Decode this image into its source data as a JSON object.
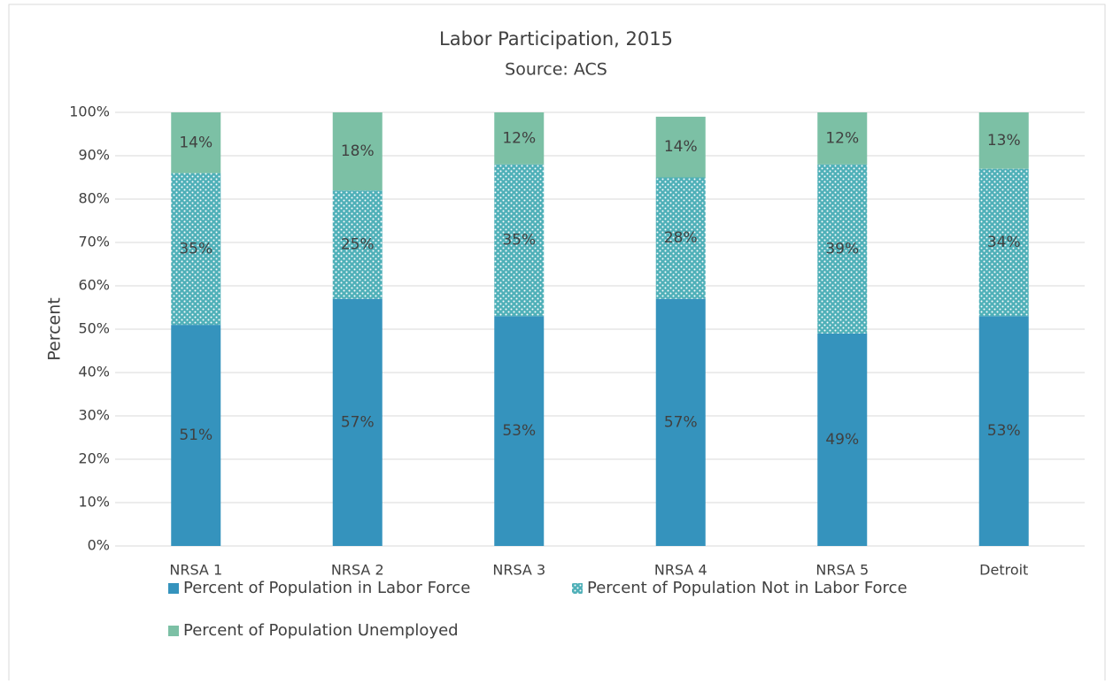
{
  "chart_data": {
    "type": "stacked_bar",
    "title": "Labor Participation, 2015",
    "subtitle": "Source: ACS",
    "y_label": "Percent",
    "categories": [
      "NRSA 1",
      "NRSA 2",
      "NRSA 3",
      "NRSA 4",
      "NRSA 5",
      "Detroit"
    ],
    "series": [
      {
        "name": "Percent of Population in Labor Force",
        "color": "#3593bd",
        "pattern": "solid",
        "values": [
          51,
          57,
          53,
          57,
          49,
          53
        ],
        "value_labels": [
          "51%",
          "57%",
          "53%",
          "57%",
          "49%",
          "53%"
        ]
      },
      {
        "name": "Percent of Population Not in Labor Force",
        "color": "#4fb0b8",
        "pattern": "dots",
        "values": [
          35,
          25,
          35,
          28,
          39,
          34
        ],
        "value_labels": [
          "35%",
          "25%",
          "35%",
          "28%",
          "39%",
          "34%"
        ]
      },
      {
        "name": "Percent of Population Unemployed",
        "color": "#7cc0a5",
        "pattern": "solid",
        "values": [
          14,
          18,
          12,
          14,
          12,
          13
        ],
        "value_labels": [
          "14%",
          "18%",
          "12%",
          "14%",
          "12%",
          "13%"
        ]
      }
    ],
    "ylim": [
      0,
      100
    ],
    "yticks": [
      {
        "value": 0,
        "label": "0%"
      },
      {
        "value": 10,
        "label": "10%"
      },
      {
        "value": 20,
        "label": "20%"
      },
      {
        "value": 30,
        "label": "30%"
      },
      {
        "value": 40,
        "label": "40%"
      },
      {
        "value": 50,
        "label": "50%"
      },
      {
        "value": 60,
        "label": "60%"
      },
      {
        "value": 70,
        "label": "70%"
      },
      {
        "value": 80,
        "label": "80%"
      },
      {
        "value": 90,
        "label": "90%"
      },
      {
        "value": 100,
        "label": "100%"
      }
    ],
    "grid": true,
    "legend": "bottom"
  }
}
